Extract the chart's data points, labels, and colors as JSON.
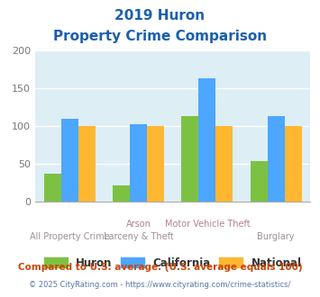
{
  "title_line1": "2019 Huron",
  "title_line2": "Property Crime Comparison",
  "cat_labels_row1": [
    "",
    "Arson",
    "Motor Vehicle Theft",
    ""
  ],
  "cat_labels_row2": [
    "All Property Crime",
    "Larceny & Theft",
    "",
    "Burglary"
  ],
  "huron": [
    37,
    22,
    113,
    54
  ],
  "california": [
    110,
    103,
    163,
    113
  ],
  "national": [
    100,
    100,
    100,
    100
  ],
  "color_huron": "#7dc142",
  "color_california": "#4da6ff",
  "color_national": "#ffb732",
  "ylim": [
    0,
    200
  ],
  "yticks": [
    0,
    50,
    100,
    150,
    200
  ],
  "background_color": "#ddeef5",
  "title_color": "#1a5fad",
  "xlabel_color_row1": "#b08090",
  "xlabel_color_row2": "#a09090",
  "legend_label_color": "#333333",
  "footer1": "Compared to U.S. average. (U.S. average equals 100)",
  "footer2": "© 2025 CityRating.com - https://www.cityrating.com/crime-statistics/",
  "footer1_color": "#cc4400",
  "footer2_color": "#5577aa"
}
